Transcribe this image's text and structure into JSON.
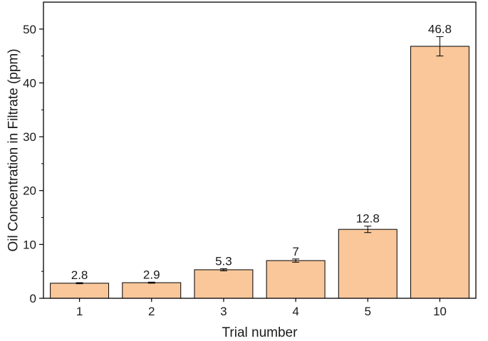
{
  "chart_data": {
    "type": "bar",
    "xlabel": "Trial number",
    "ylabel": "Oil Concentration in Filtrate (ppm)",
    "ylim": [
      0,
      55
    ],
    "yticks": [
      0,
      10,
      20,
      30,
      40,
      50
    ],
    "categories": [
      "1",
      "2",
      "3",
      "4",
      "5",
      "10"
    ],
    "values": [
      2.8,
      2.9,
      5.3,
      7,
      12.8,
      46.8
    ],
    "value_labels": [
      "2.8",
      "2.9",
      "5.3",
      "7",
      "12.8",
      "46.8"
    ],
    "errors": [
      0.1,
      0.1,
      0.2,
      0.3,
      0.6,
      1.8
    ],
    "bar_color": "#f9c79a",
    "bar_edge_color": "#000000",
    "grid": false,
    "legend": "none"
  }
}
